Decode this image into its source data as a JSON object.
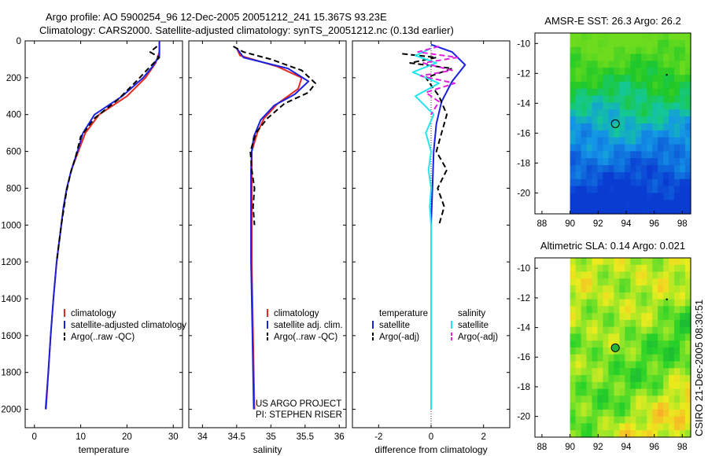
{
  "header": {
    "title_line1": "Argo profile: AO 5900254_96 12-Dec-2005 20051212_241 15.367S 93.23E",
    "title_line2": "Climatology: CARS2000. Satellite-adjusted climatology: synTS_20051212.nc (0.13d earlier)"
  },
  "colors": {
    "climatology": "#e8281e",
    "satellite": "#1a22e0",
    "argo": "#000000",
    "sat_salinity": "#22e6ee",
    "argo_salinity_adj": "#e020e0"
  },
  "chart_data": [
    {
      "type": "line",
      "id": "temperature",
      "xlabel": "temperature",
      "xlim": [
        -2,
        32
      ],
      "ylim": [
        2100,
        0
      ],
      "y_inverted": true,
      "xticks": [
        0,
        10,
        20,
        30
      ],
      "yticks": [
        0,
        200,
        400,
        600,
        800,
        1000,
        1200,
        1400,
        1600,
        1800,
        2000
      ],
      "legend": [
        "climatology",
        "satellite-adjusted climatology",
        "Argo(..raw -QC)"
      ],
      "legend_placement": "bottom",
      "series": [
        {
          "name": "climatology",
          "color": "#e8281e",
          "dash": false,
          "points": [
            [
              27,
              0
            ],
            [
              27,
              60
            ],
            [
              26.2,
              120
            ],
            [
              24,
              200
            ],
            [
              20,
              300
            ],
            [
              14,
              400
            ],
            [
              11,
              500
            ],
            [
              9.5,
              600
            ],
            [
              8,
              700
            ],
            [
              7,
              800
            ],
            [
              6.3,
              900
            ],
            [
              5.8,
              1000
            ],
            [
              4.8,
              1200
            ],
            [
              4.1,
              1400
            ],
            [
              3.5,
              1600
            ],
            [
              3,
              1800
            ],
            [
              2.5,
              2000
            ]
          ]
        },
        {
          "name": "satellite-adjusted climatology",
          "color": "#1a22e0",
          "dash": false,
          "points": [
            [
              27,
              0
            ],
            [
              27,
              80
            ],
            [
              25.5,
              140
            ],
            [
              23.5,
              200
            ],
            [
              19,
              300
            ],
            [
              13,
              400
            ],
            [
              10.5,
              500
            ],
            [
              9.3,
              600
            ],
            [
              8,
              700
            ],
            [
              7,
              800
            ],
            [
              6.3,
              900
            ],
            [
              5.8,
              1000
            ],
            [
              4.8,
              1200
            ],
            [
              4.1,
              1400
            ],
            [
              3.5,
              1600
            ],
            [
              3,
              1800
            ],
            [
              2.4,
              2000
            ]
          ]
        },
        {
          "name": "Argo(..raw -QC)",
          "color": "#000000",
          "dash": true,
          "points": [
            [
              26.5,
              30
            ],
            [
              25,
              60
            ],
            [
              27,
              90
            ],
            [
              25,
              140
            ],
            [
              22,
              220
            ],
            [
              18,
              320
            ],
            [
              13,
              420
            ],
            [
              10,
              520
            ],
            [
              9,
              620
            ],
            [
              7.8,
              720
            ],
            [
              6.9,
              820
            ],
            [
              6.3,
              920
            ],
            [
              5.8,
              1000
            ],
            [
              4.8,
              1200
            ]
          ]
        }
      ]
    },
    {
      "type": "line",
      "id": "salinity",
      "xlabel": "salinity",
      "xlim": [
        33.8,
        36.1
      ],
      "ylim": [
        2100,
        0
      ],
      "y_inverted": true,
      "xticks": [
        34,
        34.5,
        35,
        35.5,
        36
      ],
      "legend": [
        "climatology",
        "satellite adj. clim.",
        "Argo(..raw -QC)"
      ],
      "legend_placement": "bottom",
      "annotations": [
        "US ARGO PROJECT",
        "PI: STEPHEN RISER"
      ],
      "series": [
        {
          "name": "climatology",
          "color": "#e8281e",
          "dash": false,
          "points": [
            [
              34.5,
              40
            ],
            [
              34.55,
              80
            ],
            [
              35.1,
              140
            ],
            [
              35.45,
              200
            ],
            [
              35.4,
              260
            ],
            [
              35.1,
              340
            ],
            [
              34.9,
              420
            ],
            [
              34.8,
              500
            ],
            [
              34.72,
              600
            ],
            [
              34.72,
              700
            ],
            [
              34.72,
              800
            ],
            [
              34.72,
              1000
            ],
            [
              34.72,
              1200
            ],
            [
              34.73,
              1400
            ],
            [
              34.74,
              1600
            ],
            [
              34.75,
              1800
            ],
            [
              34.76,
              2000
            ]
          ]
        },
        {
          "name": "satellite adj. clim.",
          "color": "#1a22e0",
          "dash": false,
          "points": [
            [
              34.5,
              40
            ],
            [
              34.6,
              90
            ],
            [
              35.25,
              150
            ],
            [
              35.55,
              220
            ],
            [
              35.35,
              290
            ],
            [
              35.05,
              350
            ],
            [
              34.85,
              430
            ],
            [
              34.75,
              520
            ],
            [
              34.72,
              600
            ],
            [
              34.71,
              700
            ],
            [
              34.71,
              800
            ],
            [
              34.71,
              1000
            ],
            [
              34.71,
              1200
            ],
            [
              34.72,
              1400
            ],
            [
              34.73,
              1600
            ],
            [
              34.74,
              1800
            ],
            [
              34.75,
              2000
            ]
          ]
        },
        {
          "name": "Argo(..raw -QC)",
          "color": "#000000",
          "dash": true,
          "points": [
            [
              34.45,
              30
            ],
            [
              34.6,
              60
            ],
            [
              35.0,
              100
            ],
            [
              35.45,
              160
            ],
            [
              35.65,
              230
            ],
            [
              35.55,
              280
            ],
            [
              35.2,
              340
            ],
            [
              34.95,
              420
            ],
            [
              34.78,
              500
            ],
            [
              34.7,
              600
            ],
            [
              34.72,
              700
            ],
            [
              34.76,
              800
            ],
            [
              34.74,
              900
            ],
            [
              34.76,
              1000
            ]
          ]
        }
      ]
    },
    {
      "type": "line",
      "id": "difference",
      "xlabel": "difference from climatology",
      "xlim": [
        -3,
        3
      ],
      "ylim": [
        2100,
        0
      ],
      "y_inverted": true,
      "xticks": [
        -2,
        0,
        2
      ],
      "legend_headers": [
        "temperature",
        "salinity"
      ],
      "legend": [
        "satellite",
        "Argo(-adj)",
        "satellite",
        "Argo(-adj)"
      ],
      "legend_placement": "bottom",
      "series": [
        {
          "name": "satellite",
          "group": "temperature",
          "color": "#1a22e0",
          "dash": false,
          "points": [
            [
              0,
              20
            ],
            [
              0.8,
              60
            ],
            [
              1.3,
              130
            ],
            [
              0.8,
              220
            ],
            [
              0.4,
              330
            ],
            [
              0.2,
              450
            ],
            [
              0.1,
              600
            ],
            [
              0.05,
              800
            ],
            [
              0,
              1000
            ],
            [
              0,
              1200
            ],
            [
              0,
              1600
            ],
            [
              0,
              2000
            ]
          ]
        },
        {
          "name": "Argo(-adj)",
          "group": "temperature",
          "color": "#000000",
          "dash": true,
          "points": [
            [
              -1.1,
              70
            ],
            [
              0.2,
              90
            ],
            [
              -0.8,
              120
            ],
            [
              0.8,
              150
            ],
            [
              -0.2,
              200
            ],
            [
              0.3,
              300
            ],
            [
              0.6,
              400
            ],
            [
              0.4,
              500
            ],
            [
              0.2,
              600
            ],
            [
              0.6,
              700
            ],
            [
              0.25,
              800
            ],
            [
              0.5,
              900
            ],
            [
              0.3,
              1000
            ]
          ]
        },
        {
          "name": "satellite",
          "group": "salinity",
          "color": "#22e6ee",
          "dash": false,
          "points": [
            [
              0,
              40
            ],
            [
              -0.6,
              80
            ],
            [
              0.2,
              120
            ],
            [
              -0.7,
              170
            ],
            [
              0.3,
              230
            ],
            [
              -0.6,
              300
            ],
            [
              0.1,
              400
            ],
            [
              -0.2,
              500
            ],
            [
              0,
              600
            ],
            [
              -0.1,
              700
            ],
            [
              0,
              800
            ],
            [
              -0.05,
              900
            ],
            [
              0,
              1000
            ],
            [
              0,
              1200
            ],
            [
              0,
              1600
            ],
            [
              0,
              2000
            ]
          ]
        },
        {
          "name": "Argo(-adj)",
          "group": "salinity",
          "color": "#e020e0",
          "dash": true,
          "points": [
            [
              0.3,
              30
            ],
            [
              -0.5,
              60
            ],
            [
              1.0,
              90
            ],
            [
              -0.3,
              120
            ],
            [
              0.8,
              160
            ],
            [
              -0.4,
              190
            ],
            [
              0.9,
              230
            ],
            [
              -0.2,
              280
            ],
            [
              0.3,
              330
            ],
            [
              0,
              400
            ]
          ]
        }
      ]
    }
  ],
  "maps": [
    {
      "title": "AMSR-E SST: 26.3 Argo: 26.2",
      "xticks": [
        "88",
        "90",
        "92",
        "94",
        "96",
        "98"
      ],
      "yticks": [
        "-10",
        "-12",
        "-14",
        "-16",
        "-18",
        "-20"
      ],
      "marker": "circle",
      "value_field": "sst"
    },
    {
      "title": "Altimetric SLA: 0.14 Argo: 0.021",
      "xticks": [
        "88",
        "90",
        "92",
        "94",
        "96",
        "98"
      ],
      "yticks": [
        "-10",
        "-12",
        "-14",
        "-16",
        "-18",
        "-20"
      ],
      "marker": "filled-circle",
      "value_field": "sla"
    }
  ],
  "credit": "CSIRO 21-Dec-2005 08:30:51"
}
